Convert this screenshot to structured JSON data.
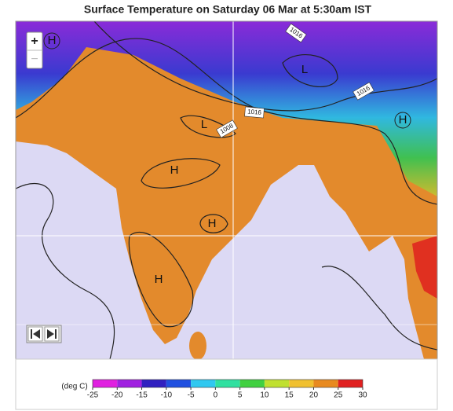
{
  "header": {
    "title": "Surface Temperature on Saturday 06 Mar at 5:30am IST"
  },
  "map": {
    "zoom_in": "+",
    "zoom_out": "−",
    "pressure_centers": [
      "H",
      "H",
      "L",
      "L",
      "H",
      "H",
      "H"
    ],
    "isobar_labels": [
      "1016",
      "1016",
      "1016",
      "1008"
    ]
  },
  "colorbar": {
    "unit": "(deg C)",
    "ticks": [
      -25,
      -20,
      -15,
      -10,
      -5,
      0,
      5,
      10,
      15,
      20,
      25,
      30
    ],
    "colors": [
      "#e020e0",
      "#a020e0",
      "#3020c0",
      "#2050e0",
      "#30c8f0",
      "#30e0a0",
      "#40d040",
      "#c0e030",
      "#f0c030",
      "#e88a20",
      "#e02020"
    ]
  }
}
